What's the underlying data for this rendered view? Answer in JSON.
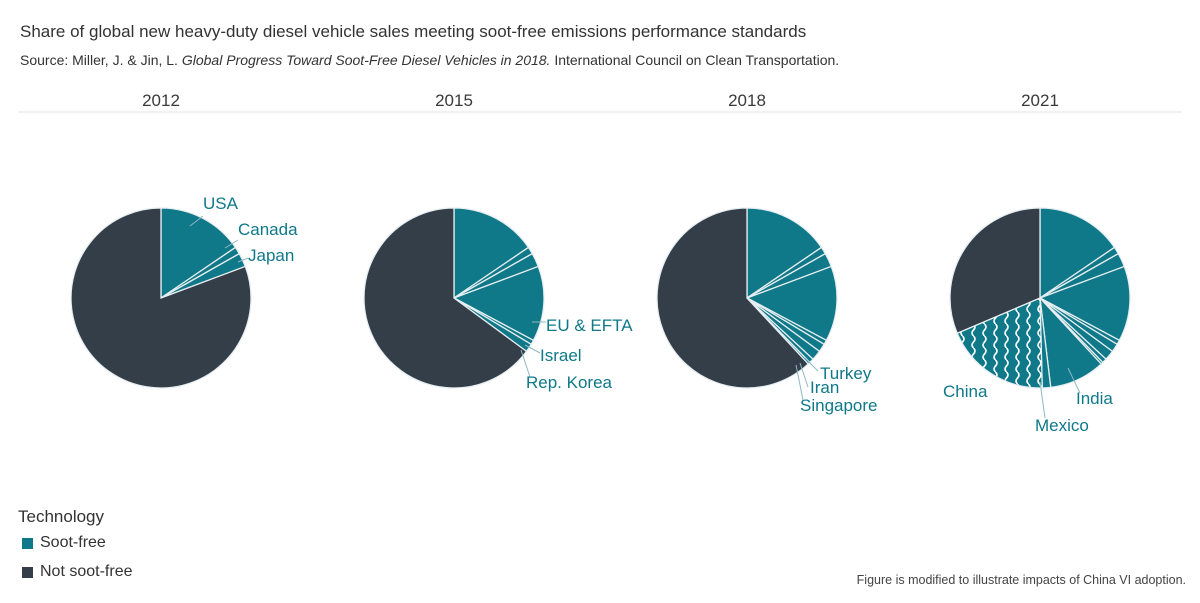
{
  "title": "Share of global new heavy-duty diesel vehicle sales meeting soot-free emissions performance standards",
  "source": {
    "prefix": "Source: Miller, J. & Jin, L. ",
    "italic": "Global Progress Toward Soot-Free Diesel Vehicles in 2018.",
    "suffix": " International Council on Clean Transportation."
  },
  "legend": {
    "title": "Technology",
    "items": [
      {
        "label": "Soot-free",
        "color": "#0f7889"
      },
      {
        "label": "Not soot-free",
        "color": "#333e48"
      }
    ]
  },
  "footnote": "Figure is modified to illustrate impacts of China VI adoption.",
  "colors": {
    "soot_free": "#0f7889",
    "not_soot_free": "#333e48",
    "label_text": "#0f7889",
    "divider": "#dfe6ea"
  },
  "chart_data": [
    {
      "type": "pie",
      "year": "2012",
      "slices": [
        {
          "label": "USA",
          "value": 15.5,
          "category": "Soot-free"
        },
        {
          "label": "Canada",
          "value": 1.3,
          "category": "Soot-free"
        },
        {
          "label": "Japan",
          "value": 2.5,
          "category": "Soot-free"
        },
        {
          "label": "",
          "value": 80.7,
          "category": "Not soot-free"
        }
      ]
    },
    {
      "type": "pie",
      "year": "2015",
      "slices": [
        {
          "label": "",
          "value": 15.5,
          "category": "Soot-free"
        },
        {
          "label": "",
          "value": 1.3,
          "category": "Soot-free"
        },
        {
          "label": "",
          "value": 2.5,
          "category": "Soot-free"
        },
        {
          "label": "EU & EFTA",
          "value": 13.5,
          "category": "Soot-free"
        },
        {
          "label": "Israel",
          "value": 0.8,
          "category": "Soot-free"
        },
        {
          "label": "Rep. Korea",
          "value": 1.5,
          "category": "Soot-free"
        },
        {
          "label": "",
          "value": 64.9,
          "category": "Not soot-free"
        }
      ]
    },
    {
      "type": "pie",
      "year": "2018",
      "slices": [
        {
          "label": "",
          "value": 15.5,
          "category": "Soot-free"
        },
        {
          "label": "",
          "value": 1.3,
          "category": "Soot-free"
        },
        {
          "label": "",
          "value": 2.5,
          "category": "Soot-free"
        },
        {
          "label": "",
          "value": 13.5,
          "category": "Soot-free"
        },
        {
          "label": "",
          "value": 0.8,
          "category": "Soot-free"
        },
        {
          "label": "",
          "value": 1.5,
          "category": "Soot-free"
        },
        {
          "label": "Turkey",
          "value": 1.8,
          "category": "Soot-free"
        },
        {
          "label": "Iran",
          "value": 0.8,
          "category": "Soot-free"
        },
        {
          "label": "Singapore",
          "value": 0.4,
          "category": "Soot-free"
        },
        {
          "label": "",
          "value": 61.9,
          "category": "Not soot-free"
        }
      ]
    },
    {
      "type": "pie",
      "year": "2021",
      "slices": [
        {
          "label": "",
          "value": 15.5,
          "category": "Soot-free"
        },
        {
          "label": "",
          "value": 1.3,
          "category": "Soot-free"
        },
        {
          "label": "",
          "value": 2.5,
          "category": "Soot-free"
        },
        {
          "label": "",
          "value": 13.5,
          "category": "Soot-free"
        },
        {
          "label": "",
          "value": 0.8,
          "category": "Soot-free"
        },
        {
          "label": "",
          "value": 1.5,
          "category": "Soot-free"
        },
        {
          "label": "",
          "value": 1.8,
          "category": "Soot-free"
        },
        {
          "label": "",
          "value": 0.8,
          "category": "Soot-free"
        },
        {
          "label": "",
          "value": 0.4,
          "category": "Soot-free"
        },
        {
          "label": "India",
          "value": 10.0,
          "category": "Soot-free"
        },
        {
          "label": "Mexico",
          "value": 1.5,
          "category": "Soot-free"
        },
        {
          "label": "China",
          "value": 19.0,
          "category": "Soot-free",
          "pattern": "wave"
        },
        {
          "label": "",
          "value": 31.4,
          "category": "Not soot-free"
        }
      ]
    }
  ]
}
